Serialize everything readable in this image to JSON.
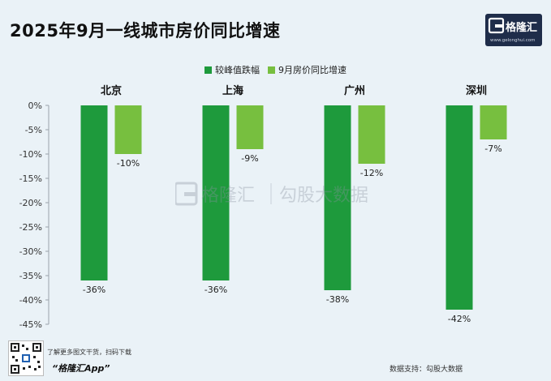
{
  "title": "2025年9月一线城市房价同比增速",
  "logo": {
    "name": "格隆汇",
    "url": "www.gelonghui.com"
  },
  "watermark": {
    "left": "格隆汇",
    "right": "勾股大数据"
  },
  "footer": {
    "promo_text": "了解更多图文干货，扫码下载",
    "app_name": "“格隆汇App”",
    "source": "数据支持：勾股大数据"
  },
  "colors": {
    "decline_from_peak": "#1e9a3c",
    "yoy": "#77bf3f"
  },
  "chart_data": {
    "type": "bar",
    "title": "2025年9月一线城市房价同比增速",
    "categories": [
      "北京",
      "上海",
      "广州",
      "深圳"
    ],
    "series": [
      {
        "name": "较峰值跌幅",
        "values": [
          -36,
          -36,
          -38,
          -42
        ],
        "labels": [
          "-36%",
          "-36%",
          "-38%",
          "-42%"
        ]
      },
      {
        "name": "9月房价同比增速",
        "values": [
          -10,
          -9,
          -12,
          -7
        ],
        "labels": [
          "-10%",
          "-9%",
          "-12%",
          "-7%"
        ]
      }
    ],
    "ylim": [
      -45,
      0
    ],
    "yticks": [
      0,
      -5,
      -10,
      -15,
      -20,
      -25,
      -30,
      -35,
      -40,
      -45
    ],
    "ytick_labels": [
      "0%",
      "-5%",
      "-10%",
      "-15%",
      "-20%",
      "-25%",
      "-30%",
      "-35%",
      "-40%",
      "-45%"
    ],
    "legend_position": "top-center",
    "grid": false
  }
}
